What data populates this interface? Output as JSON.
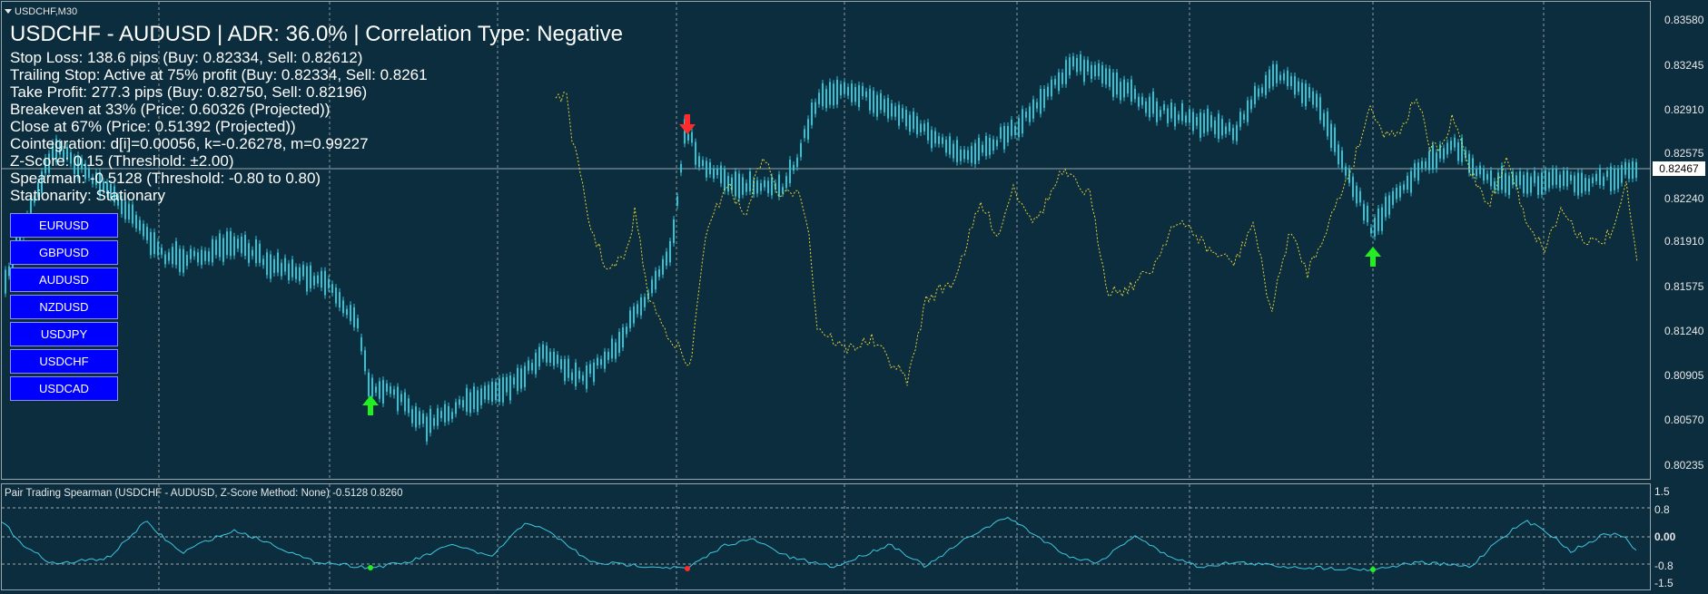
{
  "window": {
    "symbol_title": "USDCHF,M30"
  },
  "info_panel": {
    "headline": "USDCHF - AUDUSD | ADR: 36.0% | Correlation Type: Negative",
    "lines": [
      "Stop Loss: 138.6 pips (Buy: 0.82334, Sell: 0.82612)",
      "Trailing Stop: Active at 75% profit (Buy: 0.82334, Sell: 0.8261",
      "Take Profit: 277.3 pips (Buy: 0.82750, Sell: 0.82196)",
      "Breakeven at 33% (Price: 0.60326 (Projected))",
      "Close at 67% (Price: 0.51392 (Projected))",
      "Cointegration: d[i]=0.00056, k=-0.26278, m=0.99227",
      "Z-Score: 0.15 (Threshold: ±2.00)",
      "Spearman: -0.5128 (Threshold: -0.80 to 0.80)",
      "Stationarity: Stationary"
    ]
  },
  "symbol_buttons": [
    "EURUSD",
    "GBPUSD",
    "AUDUSD",
    "NZDUSD",
    "USDJPY",
    "USDCHF",
    "USDCAD"
  ],
  "price_axis": {
    "labels": [
      "0.83580",
      "0.83245",
      "0.82910",
      "0.82575",
      "0.82240",
      "0.81910",
      "0.81575",
      "0.81240",
      "0.80905",
      "0.80570",
      "0.80235"
    ],
    "current_price": "0.82467"
  },
  "indicator": {
    "title": "Pair Trading Spearman (USDCHF - AUDUSD, Z-Score Method: None) -0.5128 0.8260",
    "levels": [
      "1.5",
      "0.8",
      "0.00",
      "-0.8",
      "-1.5"
    ]
  },
  "colors": {
    "background": "#0b2d3d",
    "candles": "#2ec4d6",
    "overlay_line": "#e6d23a",
    "indicator_line": "#3cc8e0",
    "buy_arrow": "#22ee22",
    "sell_arrow": "#ff2a2a",
    "grid": "#c8c8c8",
    "button": "#0000ff"
  },
  "icons": {
    "buy_signal": "up-arrow-icon",
    "sell_signal": "down-arrow-icon"
  }
}
